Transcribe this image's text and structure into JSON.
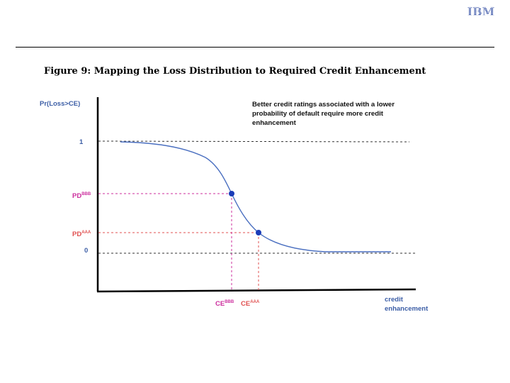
{
  "header": {
    "logo_text": "IBM",
    "figure_title": "Figure 9: Mapping the Loss Distribution to Required Credit Enhancement"
  },
  "diagram": {
    "y_axis_label": "Pr(Loss>CE)",
    "x_axis_label": [
      "credit",
      "enhancement"
    ],
    "note": [
      "Better credit ratings associated with a lower",
      "probability of default require more credit",
      "enhancement"
    ],
    "y_ticks": {
      "one": "1",
      "zero": "0"
    },
    "pd_bbb": {
      "base": "PD",
      "sup": "BBB"
    },
    "pd_aaa": {
      "base": "PD",
      "sup": "AAA"
    },
    "ce_bbb": {
      "base": "CE",
      "sup": "BBB"
    },
    "ce_aaa": {
      "base": "CE",
      "sup": "AAA"
    },
    "colors": {
      "axis_label_blue": "#3c5ea6",
      "curve": "#4a6fc0",
      "bbb_magenta": "#cc2f9e",
      "aaa_red": "#e05050",
      "point": "#1a3cb8",
      "dashed_black": "#222222"
    }
  }
}
